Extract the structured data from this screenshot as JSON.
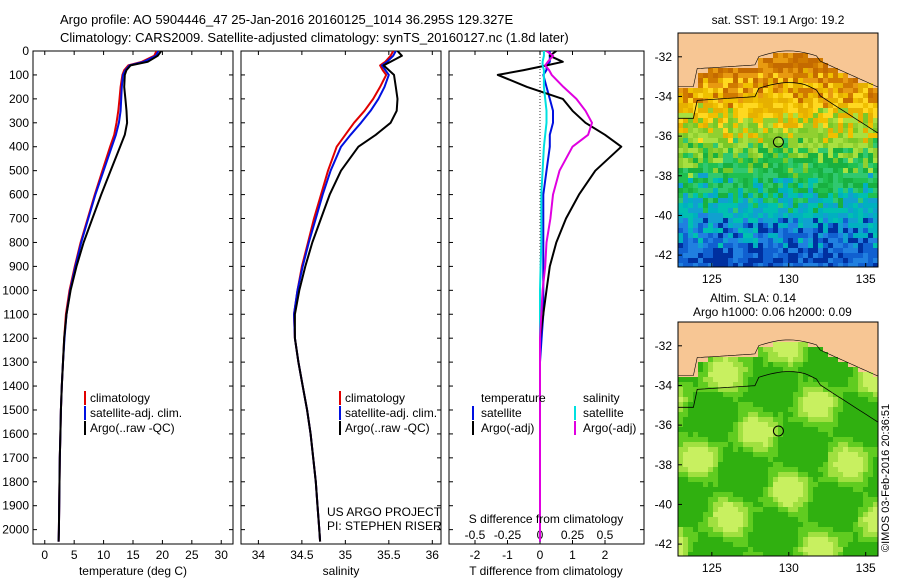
{
  "title": {
    "line1": "Argo profile: AO 5904446_47 25-Jan-2016 20160125_1014 36.295S 129.327E",
    "line2": "Climatology: CARS2009. Satellite-adjusted climatology: synTS_20160127.nc (1.8d later)"
  },
  "colors": {
    "climatology": "#e00000",
    "satellite": "#0010e0",
    "argo": "#000000",
    "sal_satellite": "#00e0e0",
    "sal_argo": "#e000e0",
    "land": "#f7c694"
  },
  "depth_axis": {
    "ticks": [
      "0",
      "100",
      "200",
      "300",
      "400",
      "500",
      "600",
      "700",
      "800",
      "900",
      "1000",
      "1100",
      "1200",
      "1300",
      "1400",
      "1500",
      "1600",
      "1700",
      "1800",
      "1900",
      "2000"
    ],
    "range": [
      0,
      2060
    ]
  },
  "chart_data": [
    {
      "type": "line",
      "id": "temperature",
      "xlabel": "temperature (deg C)",
      "xlim": [
        -2,
        32
      ],
      "xticks": [
        "0",
        "5",
        "10",
        "15",
        "20",
        "25",
        "30"
      ],
      "xtick_values": [
        0,
        5,
        10,
        15,
        20,
        25,
        30
      ],
      "depth": [
        0,
        20,
        45,
        60,
        80,
        100,
        150,
        200,
        250,
        300,
        350,
        400,
        500,
        600,
        700,
        800,
        900,
        1000,
        1100,
        1200,
        1300,
        1400,
        1500,
        1600,
        1700,
        1800,
        1900,
        2000,
        2050
      ],
      "series": [
        {
          "name": "climatology",
          "color": "#e00000",
          "values": [
            19.0,
            18.6,
            16.5,
            14.2,
            13.5,
            13.2,
            12.9,
            12.7,
            12.5,
            12.2,
            11.8,
            11.1,
            9.8,
            8.5,
            7.3,
            6.1,
            5.1,
            4.2,
            3.6,
            3.3,
            3.1,
            2.9,
            2.75,
            2.65,
            2.55,
            2.5,
            2.45,
            2.4,
            2.35
          ]
        },
        {
          "name": "satellite-adj. clim.",
          "color": "#0010e0",
          "values": [
            19.3,
            18.9,
            16.8,
            14.4,
            13.7,
            13.3,
            13.1,
            13.0,
            12.9,
            12.6,
            12.1,
            11.4,
            10.0,
            8.6,
            7.4,
            6.2,
            5.2,
            4.3,
            3.7,
            3.35,
            3.1,
            2.9,
            2.75,
            2.65,
            2.55,
            2.5,
            2.45,
            2.4,
            2.35
          ]
        },
        {
          "name": "Argo(..raw -QC)",
          "color": "#000000",
          "values": [
            19.8,
            19.2,
            17.5,
            14.6,
            13.9,
            13.6,
            13.5,
            13.7,
            13.9,
            14.0,
            13.6,
            12.8,
            11.2,
            9.6,
            8.1,
            6.6,
            5.4,
            4.4,
            3.7,
            3.3,
            3.1,
            2.9,
            2.75,
            2.65,
            2.55,
            2.5,
            2.45,
            2.4,
            2.35
          ]
        }
      ],
      "legend": [
        "climatology",
        "satellite-adj. clim.",
        "Argo(..raw -QC)"
      ]
    },
    {
      "type": "line",
      "id": "salinity",
      "xlabel": "salinity",
      "xlim": [
        33.8,
        36.1
      ],
      "xticks": [
        "34",
        "34.5",
        "35",
        "35.5",
        "36"
      ],
      "xtick_values": [
        34,
        34.5,
        35,
        35.5,
        36
      ],
      "depth": [
        0,
        20,
        45,
        60,
        80,
        100,
        150,
        200,
        250,
        300,
        350,
        400,
        500,
        600,
        700,
        800,
        900,
        1000,
        1100,
        1200,
        1300,
        1400,
        1500,
        1600,
        1700,
        1800,
        1900,
        2000,
        2050
      ],
      "series": [
        {
          "name": "climatology",
          "color": "#e00000",
          "values": [
            35.55,
            35.52,
            35.46,
            35.4,
            35.43,
            35.47,
            35.4,
            35.32,
            35.22,
            35.1,
            35.0,
            34.9,
            34.8,
            34.72,
            34.64,
            34.57,
            34.5,
            34.45,
            34.41,
            34.42,
            34.46,
            34.51,
            34.56,
            34.6,
            34.63,
            34.66,
            34.68,
            34.7,
            34.71
          ]
        },
        {
          "name": "satellite-adj. clim.",
          "color": "#0010e0",
          "values": [
            35.58,
            35.55,
            35.48,
            35.42,
            35.46,
            35.5,
            35.45,
            35.38,
            35.29,
            35.18,
            35.06,
            34.95,
            34.83,
            34.74,
            34.66,
            34.58,
            34.51,
            34.45,
            34.41,
            34.42,
            34.46,
            34.51,
            34.56,
            34.6,
            34.63,
            34.66,
            34.68,
            34.7,
            34.71
          ]
        },
        {
          "name": "Argo(..raw -QC)",
          "color": "#000000",
          "values": [
            35.6,
            35.65,
            35.52,
            35.44,
            35.5,
            35.56,
            35.58,
            35.6,
            35.59,
            35.52,
            35.35,
            35.15,
            34.95,
            34.82,
            34.72,
            34.62,
            34.54,
            34.47,
            34.42,
            34.42,
            34.46,
            34.51,
            34.56,
            34.6,
            34.63,
            34.66,
            34.68,
            34.7,
            34.71
          ]
        }
      ],
      "legend": [
        "climatology",
        "satellite-adj. clim.",
        "Argo(..raw -QC)"
      ]
    },
    {
      "type": "line",
      "id": "difference",
      "xlabel": "T difference from climatology",
      "x2label": "S difference from climatology",
      "xlim": [
        -2.8,
        3.2
      ],
      "xticks": [
        "-2",
        "-1",
        "0",
        "1",
        "2"
      ],
      "xtick_values": [
        -2,
        -1,
        0,
        1,
        2
      ],
      "x2ticks": [
        "-0.5",
        "-0.25",
        "0",
        "0.25",
        "0.5"
      ],
      "x2tick_values": [
        -0.5,
        -0.25,
        0,
        0.25,
        0.5
      ],
      "depth": [
        0,
        20,
        45,
        60,
        80,
        100,
        150,
        200,
        250,
        300,
        350,
        400,
        500,
        600,
        700,
        800,
        900,
        1000,
        1100,
        1200,
        1300,
        1400,
        1500,
        1600,
        1700,
        1800,
        1900,
        2000,
        2050
      ],
      "series": [
        {
          "name": "temperature satellite",
          "color": "#0010e0",
          "values": [
            0.3,
            0.3,
            0.3,
            0.2,
            0.2,
            0.1,
            0.2,
            0.3,
            0.4,
            0.4,
            0.3,
            0.3,
            0.2,
            0.1,
            0.1,
            0.1,
            0.1,
            0.1,
            0.1,
            0.05,
            0,
            0,
            0,
            0,
            0,
            0,
            0,
            0,
            0
          ]
        },
        {
          "name": "temperature Argo(-adj)",
          "color": "#000000",
          "values": [
            0.5,
            0.3,
            0.7,
            0.2,
            -0.5,
            -1.3,
            -0.4,
            0.7,
            1.0,
            1.4,
            2.0,
            2.5,
            1.7,
            1.2,
            0.8,
            0.5,
            0.3,
            0.2,
            0.1,
            0.0,
            0,
            0,
            0,
            0,
            0,
            0,
            0,
            0,
            0
          ]
        },
        {
          "name": "salinity satellite",
          "color": "#00e0e0",
          "values": [
            0.03,
            0.03,
            0.02,
            0.02,
            0.03,
            0.03,
            0.03,
            0.04,
            0.05,
            0.05,
            0.04,
            0.03,
            0.02,
            0.01,
            0.01,
            0.01,
            0.005,
            0.0,
            0.0,
            0.0,
            0,
            0,
            0,
            0,
            0,
            0,
            0,
            0,
            0
          ]
        },
        {
          "name": "salinity Argo(-adj)",
          "color": "#e000e0",
          "values": [
            0.05,
            0.1,
            0.06,
            0.04,
            0.07,
            0.09,
            0.18,
            0.28,
            0.35,
            0.4,
            0.37,
            0.25,
            0.15,
            0.1,
            0.08,
            0.05,
            0.04,
            0.02,
            0.01,
            0.0,
            0,
            0,
            0,
            0,
            0,
            0,
            0,
            0,
            0
          ]
        }
      ],
      "legend_temperature_title": "temperature",
      "legend_salinity_title": "salinity",
      "legend_items": [
        "satellite",
        "Argo(-adj)",
        "satellite",
        "Argo(-adj)"
      ]
    },
    {
      "type": "heatmap",
      "id": "sst_map",
      "title": "sat. SST: 19.1  Argo: 19.2",
      "xticks": [
        "125",
        "130",
        "135"
      ],
      "xtick_values": [
        125,
        130,
        135
      ],
      "yticks": [
        "-32",
        "-34",
        "-36",
        "-38",
        "-40",
        "-42"
      ],
      "ytick_values": [
        -32,
        -34,
        -36,
        -38,
        -40,
        -42
      ],
      "lon_range": [
        122.8,
        135.8
      ],
      "lat_range": [
        -42.6,
        -30.8
      ],
      "argo_position": {
        "lon": 129.327,
        "lat": -36.295
      }
    },
    {
      "type": "heatmap",
      "id": "sla_map",
      "title": "Altim. SLA: 0.14",
      "subtitle": "Argo h1000: 0.06  h2000: 0.09",
      "xticks": [
        "125",
        "130",
        "135"
      ],
      "xtick_values": [
        125,
        130,
        135
      ],
      "yticks": [
        "-32",
        "-34",
        "-36",
        "-38",
        "-40",
        "-42"
      ],
      "ytick_values": [
        -32,
        -34,
        -36,
        -38,
        -40,
        -42
      ],
      "lon_range": [
        122.8,
        135.8
      ],
      "lat_range": [
        -42.6,
        -30.8
      ],
      "argo_position": {
        "lon": 129.327,
        "lat": -36.295
      }
    }
  ],
  "text_boxes": {
    "project": "US ARGO PROJECT",
    "pi": "PI: STEPHEN RISER"
  },
  "copyright": "©IMOS 03-Feb-2016 20:36:51"
}
